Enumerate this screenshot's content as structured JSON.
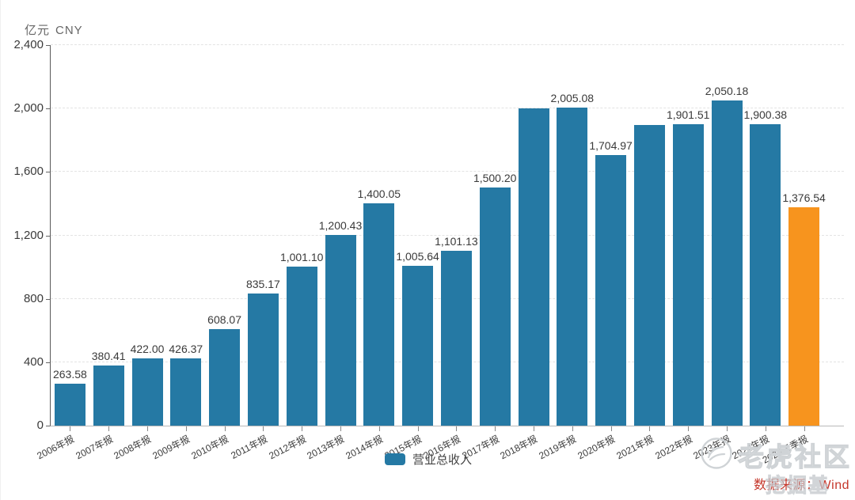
{
  "unit_label": {
    "cn": "亿元",
    "currency": "CNY"
  },
  "chart_data": {
    "type": "bar",
    "title": "",
    "ylabel": "亿元 CNY",
    "xlabel": "",
    "ylim": [
      0,
      2400
    ],
    "grid": true,
    "legend_position": "bottom-center",
    "series_name": "营业总收入",
    "yticks": [
      0,
      400,
      800,
      1200,
      1600,
      2000,
      2400
    ],
    "ytick_labels": [
      "0",
      "400",
      "800",
      "1,200",
      "1,600",
      "2,000",
      "2,400"
    ],
    "categories": [
      "2006年报",
      "2007年报",
      "2008年报",
      "2009年报",
      "2010年报",
      "2011年报",
      "2012年报",
      "2013年报",
      "2014年报",
      "2015年报",
      "2016年报",
      "2017年报",
      "2018年报",
      "2019年报",
      "2020年报",
      "2021年报",
      "2022年报",
      "2023年报",
      "2024年报",
      "2025三季报"
    ],
    "values": [
      263.58,
      380.41,
      422.0,
      426.37,
      608.07,
      835.17,
      1001.1,
      1200.43,
      1400.05,
      1005.64,
      1101.13,
      1500.2,
      2000.24,
      2005.08,
      1704.97,
      1896.54,
      1901.51,
      2050.18,
      1900.38,
      1376.54
    ],
    "value_labels": [
      "263.58",
      "380.41",
      "422.00",
      "426.37",
      "608.07",
      "835.17",
      "1,001.10",
      "1,200.43",
      "1,400.05",
      "1,005.64",
      "1,101.13",
      "1,500.20",
      "",
      "2,005.08",
      "1,704.97",
      "",
      "1,901.51",
      "2,050.18",
      "1,900.38",
      "1,376.54"
    ],
    "colors": {
      "bar_default": "#2579a4",
      "bar_highlight_last": "#f7941e"
    }
  },
  "legend": {
    "label": "营业总收入",
    "swatch_color": "#2579a4"
  },
  "footer": {
    "source_text": "数据来源：Wind",
    "color": "#c5372b"
  },
  "watermark": {
    "community_text": "老虎社区",
    "overlay_text": "挖掘基",
    "logo": "tiger-circle-icon",
    "color": "#cfd3d6"
  }
}
